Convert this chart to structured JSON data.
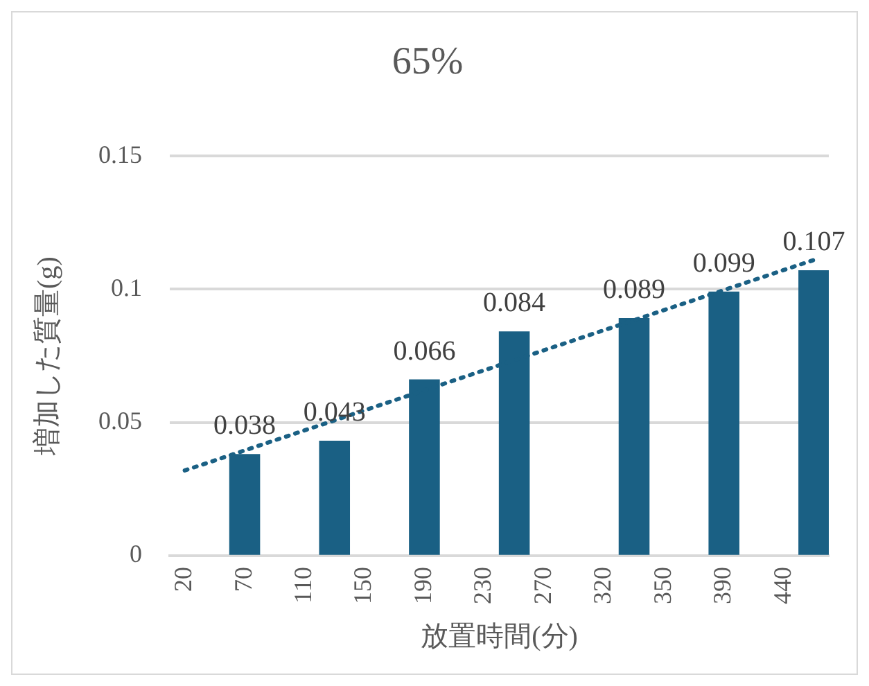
{
  "chart_data": {
    "type": "bar",
    "title": "65%",
    "xlabel": "放置時間(分)",
    "ylabel": "増加した質量(g)",
    "categories": [
      "20",
      null,
      "70",
      null,
      "110",
      null,
      "150",
      null,
      "190",
      null,
      "230",
      null,
      "270",
      null,
      "320",
      null,
      "350",
      null,
      "390",
      null,
      "440",
      null
    ],
    "series": [
      {
        "color": "#1a6084",
        "values": [
          null,
          null,
          0.038,
          null,
          null,
          0.043,
          null,
          null,
          0.066,
          null,
          null,
          0.084,
          null,
          null,
          null,
          0.089,
          null,
          null,
          0.099,
          null,
          null,
          0.107
        ],
        "data_labels": true
      },
      {
        "type": "line",
        "color": "#1a6084",
        "marker": "none",
        "line_style": "dotted",
        "values": [
          0.032,
          null,
          null,
          null,
          null,
          null,
          null,
          null,
          null,
          null,
          null,
          null,
          null,
          null,
          null,
          null,
          null,
          null,
          null,
          null,
          null,
          0.111
        ]
      }
    ],
    "ylim": [
      0,
      0.15
    ],
    "yticks": [
      0,
      0.05,
      0.1,
      0.15
    ],
    "grid": "y",
    "legend": false
  }
}
